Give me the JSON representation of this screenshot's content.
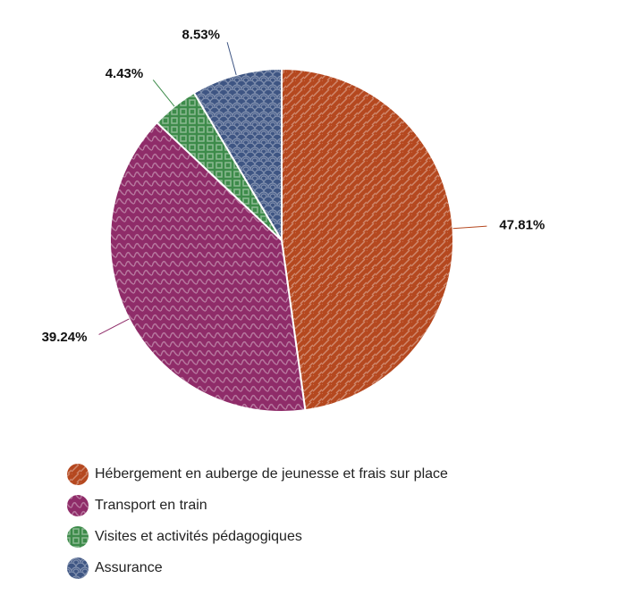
{
  "chart_data": {
    "type": "pie",
    "categories": [
      "Hébergement en auberge de jeunesse et frais sur place",
      "Transport en train",
      "Visites et activités pédagogiques",
      "Assurance"
    ],
    "values": [
      47.81,
      39.24,
      4.43,
      8.53
    ],
    "value_labels": [
      "47.81%",
      "39.24%",
      "4.43%",
      "8.53%"
    ],
    "colors": [
      "#b5481f",
      "#8f2c69",
      "#3d8b4a",
      "#3e5583"
    ]
  }
}
